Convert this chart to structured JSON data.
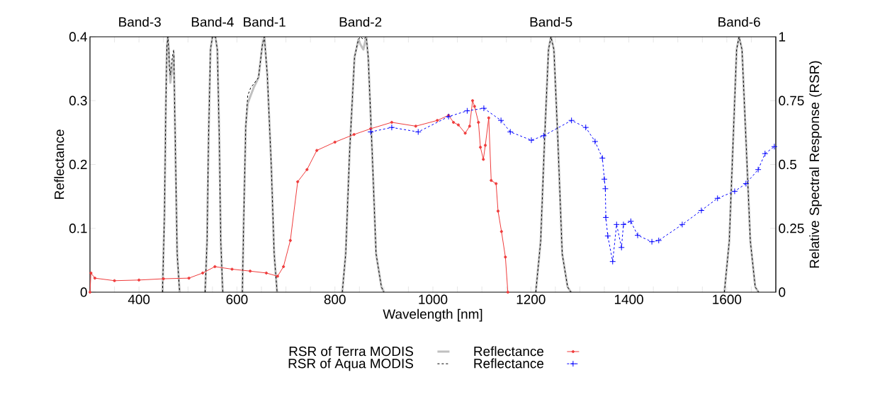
{
  "chart_data": {
    "type": "line",
    "xlabel": "Wavelength [nm]",
    "ylabel": "Reflectance",
    "y2label": "Relative Spectral Response (RSR)",
    "xlim": [
      300,
      1700
    ],
    "xticks": [
      {
        "value": 300,
        "label": null
      },
      {
        "value": 350,
        "label": null
      },
      400,
      {
        "value": 450,
        "label": null
      },
      {
        "value": 500,
        "label": null
      },
      {
        "value": 550,
        "label": null
      },
      600,
      {
        "value": 650,
        "label": null
      },
      {
        "value": 700,
        "label": null
      },
      {
        "value": 750,
        "label": null
      },
      800,
      {
        "value": 850,
        "label": null
      },
      {
        "value": 900,
        "label": null
      },
      {
        "value": 950,
        "label": null
      },
      1000,
      {
        "value": 1050,
        "label": null
      },
      {
        "value": 1100,
        "label": null
      },
      {
        "value": 1150,
        "label": null
      },
      1200,
      {
        "value": 1250,
        "label": null
      },
      {
        "value": 1300,
        "label": null
      },
      {
        "value": 1350,
        "label": null
      },
      1400,
      {
        "value": 1450,
        "label": null
      },
      {
        "value": 1500,
        "label": null
      },
      {
        "value": 1550,
        "label": null
      },
      1600,
      {
        "value": 1650,
        "label": null
      },
      {
        "value": 1700,
        "label": null
      }
    ],
    "annotations": [
      {
        "text": "Band-3",
        "x": 459,
        "y": 0.4
      },
      {
        "text": "Band-4",
        "x": 550,
        "y": 0.4
      },
      {
        "text": "Band-1",
        "x": 656,
        "y": 0.4
      },
      {
        "text": "Band-2",
        "x": 852,
        "y": 0.4
      },
      {
        "text": "Band-5",
        "x": 1241,
        "y": 0.4
      },
      {
        "text": "Band-6",
        "x": 1625,
        "y": 0.4
      }
    ],
    "ylim": [
      0,
      0.4
    ],
    "yticks": [
      0,
      0.1,
      0.2,
      0.3,
      0.4
    ],
    "y2lim": [
      0,
      1
    ],
    "y2ticks": [
      0,
      0.25,
      0.5,
      0.75,
      1
    ],
    "legend": "bottom",
    "series": [
      {
        "name": "RSR of Terra MODIS",
        "color": "#c0c0c0",
        "axis": "y2",
        "marker": "none",
        "line_style": "solid",
        "x": [
          448,
          452,
          455,
          457,
          459,
          461,
          462,
          464,
          468,
          471,
          474,
          478,
          483,
          500,
          535,
          539,
          542,
          546,
          550,
          556,
          560,
          564,
          567,
          571,
          590,
          611,
          614,
          618,
          622,
          634,
          644,
          652,
          656,
          662,
          670,
          676,
          682,
          750,
          815,
          822,
          830,
          840,
          848,
          852,
          858,
          864,
          868,
          876,
          884,
          895,
          900,
          1000,
          1210,
          1220,
          1228,
          1236,
          1241,
          1247,
          1255,
          1264,
          1275,
          1282,
          1400,
          1595,
          1605,
          1613,
          1620,
          1625,
          1631,
          1639,
          1648,
          1658,
          1665
        ],
        "values": [
          0,
          0.3,
          0.75,
          0.96,
          1.0,
          0.95,
          0.9,
          0.82,
          0.88,
          0.93,
          0.6,
          0.15,
          0,
          null,
          0,
          0.2,
          0.6,
          0.95,
          1.0,
          1.0,
          0.95,
          0.6,
          0.2,
          0,
          null,
          0,
          0.3,
          0.65,
          0.74,
          0.8,
          0.84,
          0.97,
          1.0,
          0.85,
          0.5,
          0.15,
          0,
          null,
          0,
          0.15,
          0.55,
          0.92,
          0.99,
          0.97,
          0.95,
          1.0,
          0.92,
          0.55,
          0.15,
          0.02,
          0,
          null,
          0,
          0.2,
          0.6,
          0.95,
          1.0,
          0.95,
          0.6,
          0.15,
          0.02,
          0,
          null,
          0,
          0.2,
          0.6,
          0.95,
          1.0,
          0.95,
          0.6,
          0.2,
          0.02,
          0
        ]
      },
      {
        "name": "RSR of Aqua MODIS",
        "color": "#000000",
        "axis": "y2",
        "marker": "none",
        "line_style": "dashed",
        "x": [
          448,
          452,
          455,
          457,
          459,
          461,
          462,
          464,
          468,
          471,
          474,
          478,
          483,
          500,
          535,
          539,
          542,
          546,
          550,
          556,
          560,
          564,
          567,
          571,
          590,
          611,
          614,
          618,
          622,
          628,
          644,
          652,
          656,
          662,
          670,
          676,
          682,
          750,
          815,
          822,
          830,
          840,
          848,
          852,
          858,
          864,
          868,
          876,
          884,
          895,
          900,
          1000,
          1210,
          1220,
          1228,
          1236,
          1241,
          1247,
          1255,
          1264,
          1275,
          1282,
          1400,
          1595,
          1605,
          1613,
          1620,
          1625,
          1631,
          1639,
          1648,
          1658,
          1665
        ],
        "values": [
          0,
          0.3,
          0.75,
          0.96,
          1.0,
          0.94,
          0.88,
          0.85,
          0.92,
          0.95,
          0.6,
          0.15,
          0,
          null,
          0,
          0.2,
          0.6,
          0.95,
          1.0,
          1.0,
          0.95,
          0.6,
          0.2,
          0,
          null,
          0,
          0.3,
          0.65,
          0.77,
          0.8,
          0.84,
          0.97,
          1.0,
          0.85,
          0.5,
          0.15,
          0,
          null,
          0,
          0.15,
          0.55,
          0.92,
          0.99,
          1.0,
          0.99,
          1.0,
          0.92,
          0.55,
          0.15,
          0.02,
          0,
          null,
          0,
          0.2,
          0.6,
          0.95,
          1.0,
          0.95,
          0.6,
          0.15,
          0.02,
          0,
          null,
          0,
          0.2,
          0.6,
          0.95,
          1.0,
          0.95,
          0.6,
          0.2,
          0.02,
          0
        ]
      },
      {
        "name": "Reflectance",
        "color": "#f03c3c",
        "axis": "y",
        "marker": "circle",
        "line_style": "solid",
        "x": [
          300,
          302,
          310,
          350,
          400,
          450,
          502,
          530,
          555,
          590,
          627,
          660,
          683,
          695,
          709,
          724,
          743,
          763,
          800,
          839,
          873,
          916,
          965,
          1009,
          1032,
          1042,
          1052,
          1066,
          1075,
          1081,
          1085,
          1093,
          1097,
          1103,
          1107,
          1114,
          1119,
          1129,
          1133,
          1140,
          1148,
          1153
        ],
        "values": [
          0,
          0.03,
          0.022,
          0.018,
          0.019,
          0.021,
          0.022,
          0.03,
          0.04,
          0.036,
          0.033,
          0.03,
          0.025,
          0.04,
          0.081,
          0.173,
          0.192,
          0.222,
          0.235,
          0.247,
          0.256,
          0.266,
          0.26,
          0.269,
          0.277,
          0.266,
          0.262,
          0.249,
          0.26,
          0.3,
          0.291,
          0.266,
          0.227,
          0.208,
          0.23,
          0.273,
          0.175,
          0.17,
          0.127,
          0.095,
          0.055,
          0
        ]
      },
      {
        "name": "Reflectance",
        "color": "#0000ff",
        "axis": "y",
        "marker": "cross",
        "line_style": "dashed",
        "x": [
          873,
          916,
          970,
          1032,
          1070,
          1104,
          1139,
          1158,
          1201,
          1226,
          1283,
          1312,
          1331,
          1346,
          1350,
          1352,
          1353,
          1357,
          1367,
          1375,
          1385,
          1389,
          1404,
          1418,
          1447,
          1461,
          1509,
          1548,
          1581,
          1616,
          1639,
          1664,
          1678,
          1697
        ],
        "values": [
          0.251,
          0.258,
          0.251,
          0.275,
          0.284,
          0.288,
          0.269,
          0.251,
          0.238,
          0.245,
          0.269,
          0.258,
          0.236,
          0.21,
          0.177,
          0.162,
          0.117,
          0.088,
          0.048,
          0.106,
          0.07,
          0.106,
          0.111,
          0.089,
          0.079,
          0.081,
          0.106,
          0.128,
          0.147,
          0.158,
          0.17,
          0.192,
          0.217,
          0.228
        ]
      }
    ]
  }
}
